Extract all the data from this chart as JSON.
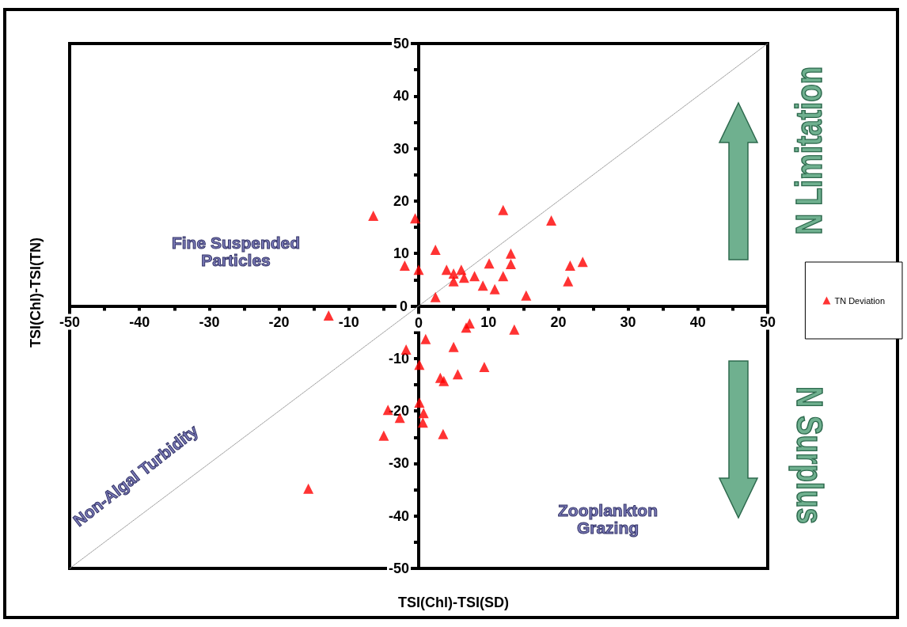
{
  "chart_data": {
    "type": "scatter",
    "xlabel": "TSI(Chl)-TSI(SD)",
    "ylabel": "TSI(Chl)-TSI(TN)",
    "xlim": [
      -50,
      50
    ],
    "ylim": [
      -50,
      50
    ],
    "xticks": [
      -50,
      -40,
      -30,
      -20,
      -10,
      0,
      10,
      20,
      30,
      40,
      50
    ],
    "yticks": [
      -50,
      -40,
      -30,
      -20,
      -10,
      0,
      10,
      20,
      30,
      40,
      50
    ],
    "legend": "right",
    "annotations": [
      "Fine Suspended Particles",
      "Non-Algal Turbidity",
      "Zooplankton Grazing",
      "N Limitation",
      "N Surplus"
    ],
    "series": [
      {
        "name": "TN Deviation",
        "color": "#ff0000",
        "marker": "triangle",
        "x": [
          -6.5,
          -0.5,
          12.1,
          19.0,
          -2.0,
          0,
          2.4,
          2.4,
          4.0,
          5.0,
          5.0,
          6.1,
          6.5,
          8.0,
          9.2,
          10.1,
          10.9,
          12.1,
          13.2,
          13.2,
          15.4,
          21.4,
          21.7,
          23.5,
          -12.9,
          7.3,
          6.8,
          13.7,
          1.0,
          -1.8,
          5.0,
          0.1,
          9.4,
          3.1,
          3.6,
          5.6,
          0.1,
          -4.4,
          -2.7,
          0.7,
          0.6,
          -5.0,
          3.5,
          -15.8
        ],
        "values": [
          17.2,
          16.7,
          18.3,
          16.3,
          7.7,
          6.9,
          10.7,
          1.7,
          6.9,
          6.2,
          4.7,
          6.9,
          5.4,
          5.7,
          3.9,
          8.1,
          3.2,
          5.7,
          10.0,
          8.0,
          2.0,
          4.7,
          7.7,
          8.4,
          -1.8,
          -3.3,
          -4.1,
          -4.5,
          -6.3,
          -8.3,
          -7.8,
          -11.2,
          -11.6,
          -13.7,
          -14.3,
          -13.0,
          -18.4,
          -19.8,
          -21.3,
          -20.4,
          -22.2,
          -24.7,
          -24.4,
          -34.8
        ]
      },
      {
        "type": "line",
        "color": "#999999",
        "marker": "none",
        "line_style": "dotted",
        "x": [
          -50,
          50
        ],
        "values": [
          -50,
          50
        ]
      }
    ]
  }
}
